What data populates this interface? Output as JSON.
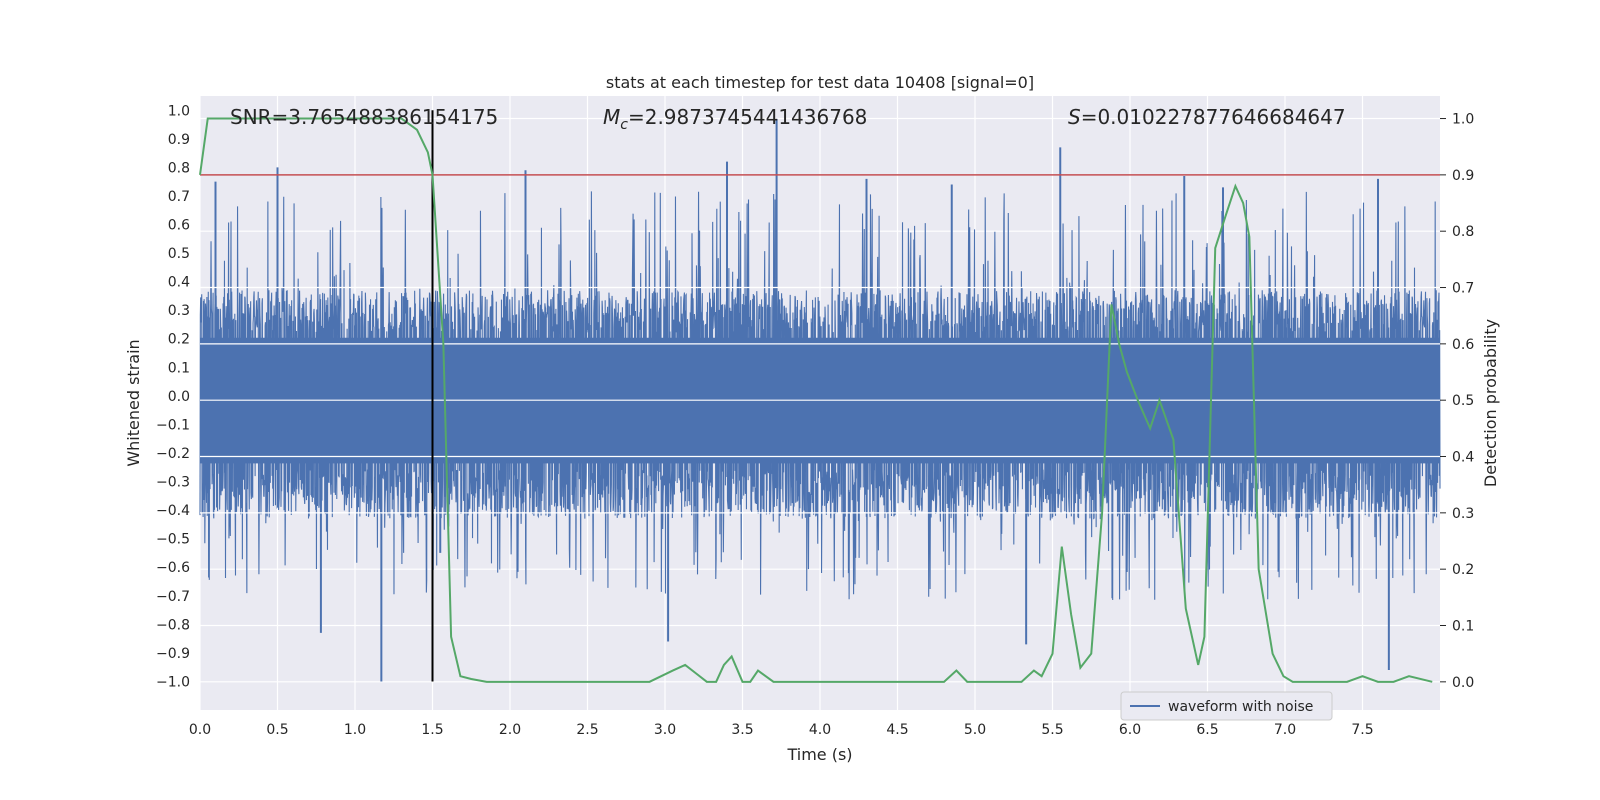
{
  "chart_data": {
    "type": "line",
    "title": "stats at each timestep for test data 10408 [signal=0]",
    "xlabel": "Time (s)",
    "ylabel_left": "Whitened strain",
    "ylabel_right": "Detection probability",
    "xlim": [
      0.0,
      8.0
    ],
    "ylim_left": [
      -1.1,
      1.05
    ],
    "ylim_right": [
      -0.05,
      1.04
    ],
    "x_ticks": [
      "0.0",
      "0.5",
      "1.0",
      "1.5",
      "2.0",
      "2.5",
      "3.0",
      "3.5",
      "4.0",
      "4.5",
      "5.0",
      "5.5",
      "6.0",
      "6.5",
      "7.0",
      "7.5"
    ],
    "x_tick_values": [
      0.0,
      0.5,
      1.0,
      1.5,
      2.0,
      2.5,
      3.0,
      3.5,
      4.0,
      4.5,
      5.0,
      5.5,
      6.0,
      6.5,
      7.0,
      7.5
    ],
    "y_left_ticks": [
      "1.0",
      "0.9",
      "0.8",
      "0.7",
      "0.6",
      "0.5",
      "0.4",
      "0.3",
      "0.2",
      "0.1",
      "0.0",
      "−0.1",
      "−0.2",
      "−0.3",
      "−0.4",
      "−0.5",
      "−0.6",
      "−0.7",
      "−0.8",
      "−0.9",
      "−1.0"
    ],
    "y_left_tick_values": [
      1.0,
      0.9,
      0.8,
      0.7,
      0.6,
      0.5,
      0.4,
      0.3,
      0.2,
      0.1,
      0.0,
      -0.1,
      -0.2,
      -0.3,
      -0.4,
      -0.5,
      -0.6,
      -0.7,
      -0.8,
      -0.9,
      -1.0
    ],
    "y_right_ticks": [
      "1.0",
      "0.9",
      "0.8",
      "0.7",
      "0.6",
      "0.5",
      "0.4",
      "0.3",
      "0.2",
      "0.1",
      "0.0"
    ],
    "y_right_tick_values": [
      1.0,
      0.9,
      0.8,
      0.7,
      0.6,
      0.5,
      0.4,
      0.3,
      0.2,
      0.1,
      0.0
    ],
    "grid": true,
    "legend": {
      "placement": "lower-right",
      "entries": [
        "waveform with noise"
      ]
    },
    "annotations": {
      "snr": "SNR=3.765488386154175",
      "mc_symbol": "M",
      "mc_sub": "c",
      "mc_value": "=2.9873745441436768",
      "s_symbol": "S",
      "s_value": "=0.010227877646684647"
    },
    "threshold_line": {
      "axis": "right",
      "value": 0.9,
      "color": "#c44e52"
    },
    "vertical_marker": {
      "x": 1.5,
      "y_from": -1.0,
      "y_to": 1.0,
      "color": "#000000"
    },
    "waveform": {
      "name": "waveform with noise",
      "color": "#4c72b0",
      "x_range": [
        0.0,
        8.0
      ],
      "band_min": -0.43,
      "band_max": 0.37,
      "peak_samples": [
        {
          "x": 0.1,
          "y": 0.75
        },
        {
          "x": 0.5,
          "y": 0.8
        },
        {
          "x": 0.78,
          "y": -0.83
        },
        {
          "x": 1.17,
          "y": -1.0
        },
        {
          "x": 1.55,
          "y": -0.55
        },
        {
          "x": 2.1,
          "y": 0.79
        },
        {
          "x": 3.02,
          "y": -0.86
        },
        {
          "x": 3.4,
          "y": 0.82
        },
        {
          "x": 3.72,
          "y": 0.97
        },
        {
          "x": 4.3,
          "y": 0.76
        },
        {
          "x": 4.85,
          "y": 0.74
        },
        {
          "x": 5.33,
          "y": -0.87
        },
        {
          "x": 5.55,
          "y": 0.87
        },
        {
          "x": 6.35,
          "y": 0.77
        },
        {
          "x": 6.6,
          "y": 0.73
        },
        {
          "x": 7.67,
          "y": -0.96
        },
        {
          "x": 7.6,
          "y": 0.76
        }
      ]
    },
    "detection_probability": {
      "color": "#55a868",
      "axis": "right",
      "x": [
        0.0,
        0.05,
        0.1,
        0.2,
        0.4,
        0.6,
        0.8,
        1.0,
        1.2,
        1.3,
        1.4,
        1.47,
        1.5,
        1.57,
        1.62,
        1.68,
        1.75,
        1.85,
        2.0,
        2.3,
        2.6,
        2.9,
        3.05,
        3.13,
        3.2,
        3.27,
        3.33,
        3.38,
        3.43,
        3.5,
        3.55,
        3.6,
        3.7,
        3.8,
        4.0,
        4.3,
        4.6,
        4.8,
        4.88,
        4.95,
        5.0,
        5.1,
        5.2,
        5.3,
        5.38,
        5.43,
        5.5,
        5.56,
        5.62,
        5.68,
        5.75,
        5.82,
        5.88,
        5.93,
        5.98,
        6.05,
        6.13,
        6.19,
        6.28,
        6.36,
        6.44,
        6.48,
        6.55,
        6.62,
        6.68,
        6.73,
        6.77,
        6.83,
        6.92,
        6.99,
        7.05,
        7.2,
        7.4,
        7.5,
        7.6,
        7.7,
        7.8,
        7.95
      ],
      "y": [
        0.9,
        1.0,
        1.0,
        1.0,
        1.0,
        1.0,
        1.0,
        1.0,
        1.0,
        1.0,
        0.98,
        0.94,
        0.9,
        0.6,
        0.08,
        0.01,
        0.005,
        0.0,
        0.0,
        0.0,
        0.0,
        0.0,
        0.02,
        0.03,
        0.015,
        0.0,
        0.0,
        0.03,
        0.045,
        0.0,
        0.0,
        0.02,
        0.0,
        0.0,
        0.0,
        0.0,
        0.0,
        0.0,
        0.02,
        0.0,
        0.0,
        0.0,
        0.0,
        0.0,
        0.02,
        0.01,
        0.05,
        0.24,
        0.12,
        0.025,
        0.05,
        0.3,
        0.67,
        0.6,
        0.55,
        0.5,
        0.45,
        0.5,
        0.43,
        0.13,
        0.03,
        0.08,
        0.77,
        0.83,
        0.88,
        0.85,
        0.79,
        0.2,
        0.05,
        0.01,
        0.0,
        0.0,
        0.0,
        0.01,
        0.0,
        0.0,
        0.01,
        0.0
      ]
    }
  }
}
